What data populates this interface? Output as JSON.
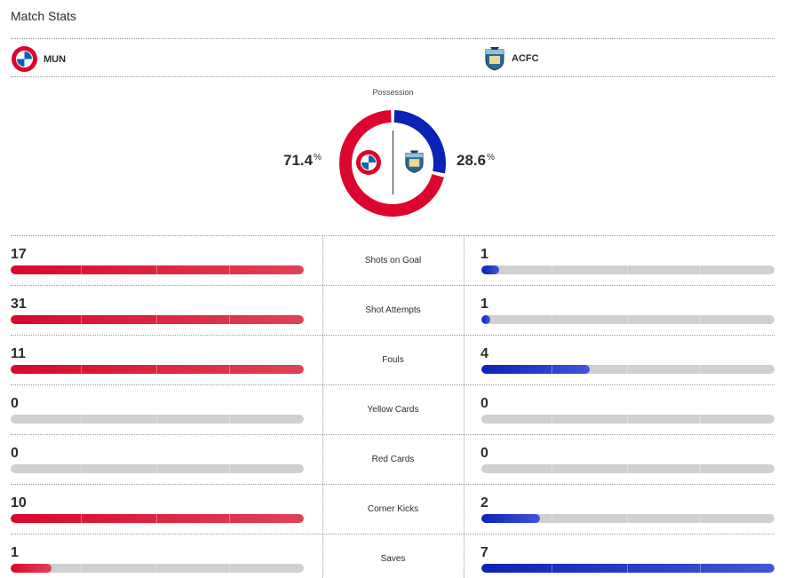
{
  "header": {
    "title": "Match Stats"
  },
  "teams": {
    "home": {
      "abbr": "MUN",
      "logo": "bayern-crest-icon",
      "color": "#dc052d"
    },
    "away": {
      "abbr": "ACFC",
      "logo": "auckland-city-crest-icon",
      "color": "#0a23b4"
    }
  },
  "possession": {
    "label": "Possession",
    "home": {
      "value": "71.4",
      "unit": "%"
    },
    "away": {
      "value": "28.6",
      "unit": "%"
    },
    "home_fraction": 0.714,
    "away_fraction": 0.286
  },
  "stats": [
    {
      "label": "Shots on Goal",
      "home": "17",
      "away": "1",
      "home_pct": 100,
      "away_pct": 6
    },
    {
      "label": "Shot Attempts",
      "home": "31",
      "away": "1",
      "home_pct": 100,
      "away_pct": 3
    },
    {
      "label": "Fouls",
      "home": "11",
      "away": "4",
      "home_pct": 100,
      "away_pct": 37
    },
    {
      "label": "Yellow Cards",
      "home": "0",
      "away": "0",
      "home_pct": 0,
      "away_pct": 0
    },
    {
      "label": "Red Cards",
      "home": "0",
      "away": "0",
      "home_pct": 0,
      "away_pct": 0
    },
    {
      "label": "Corner Kicks",
      "home": "10",
      "away": "2",
      "home_pct": 100,
      "away_pct": 20
    },
    {
      "label": "Saves",
      "home": "1",
      "away": "7",
      "home_pct": 14,
      "away_pct": 100
    }
  ]
}
